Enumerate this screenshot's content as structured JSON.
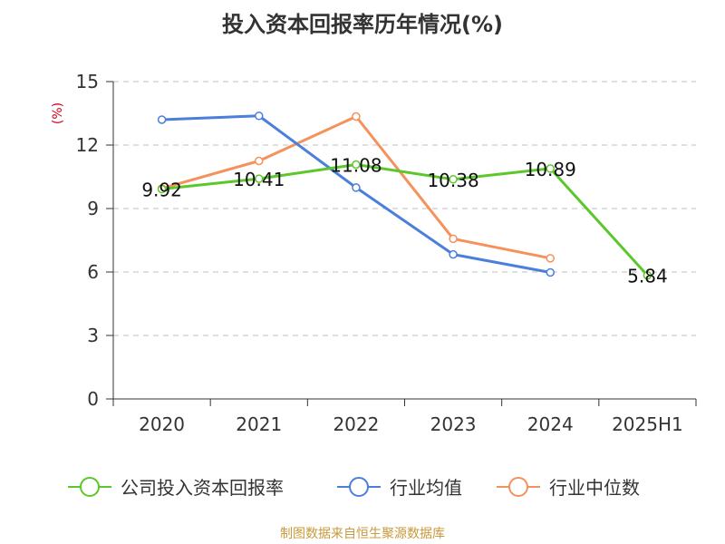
{
  "chart_data": {
    "type": "line",
    "title": "投入资本回报率历年情况(%)",
    "ylabel": "(%)",
    "xlabel": "",
    "categories": [
      "2020",
      "2021",
      "2022",
      "2023",
      "2024",
      "2025H1"
    ],
    "ylim": [
      0,
      15
    ],
    "yticks": [
      "0",
      "3",
      "6",
      "9",
      "12",
      "15"
    ],
    "grid": true,
    "legend_position": "bottom",
    "series": [
      {
        "name": "公司投入资本回报率",
        "color": "#5cc72b",
        "values": [
          9.92,
          10.41,
          11.08,
          10.38,
          10.89,
          5.84
        ],
        "labels": [
          "9.92",
          "10.41",
          "11.08",
          "10.38",
          "10.89",
          "5.84"
        ]
      },
      {
        "name": "行业均值",
        "color": "#4a7fdc",
        "values": [
          13.2,
          13.38,
          9.99,
          6.83,
          5.98,
          null
        ]
      },
      {
        "name": "行业中位数",
        "color": "#f5915b",
        "values": [
          9.95,
          11.25,
          13.35,
          7.57,
          6.65,
          null
        ]
      }
    ]
  },
  "source": "制图数据来自恒生聚源数据库",
  "colors": {
    "axis": "#333333",
    "grid": "#bfbfbf",
    "ylabel": "#d0021b",
    "source": "#c99a3b"
  }
}
